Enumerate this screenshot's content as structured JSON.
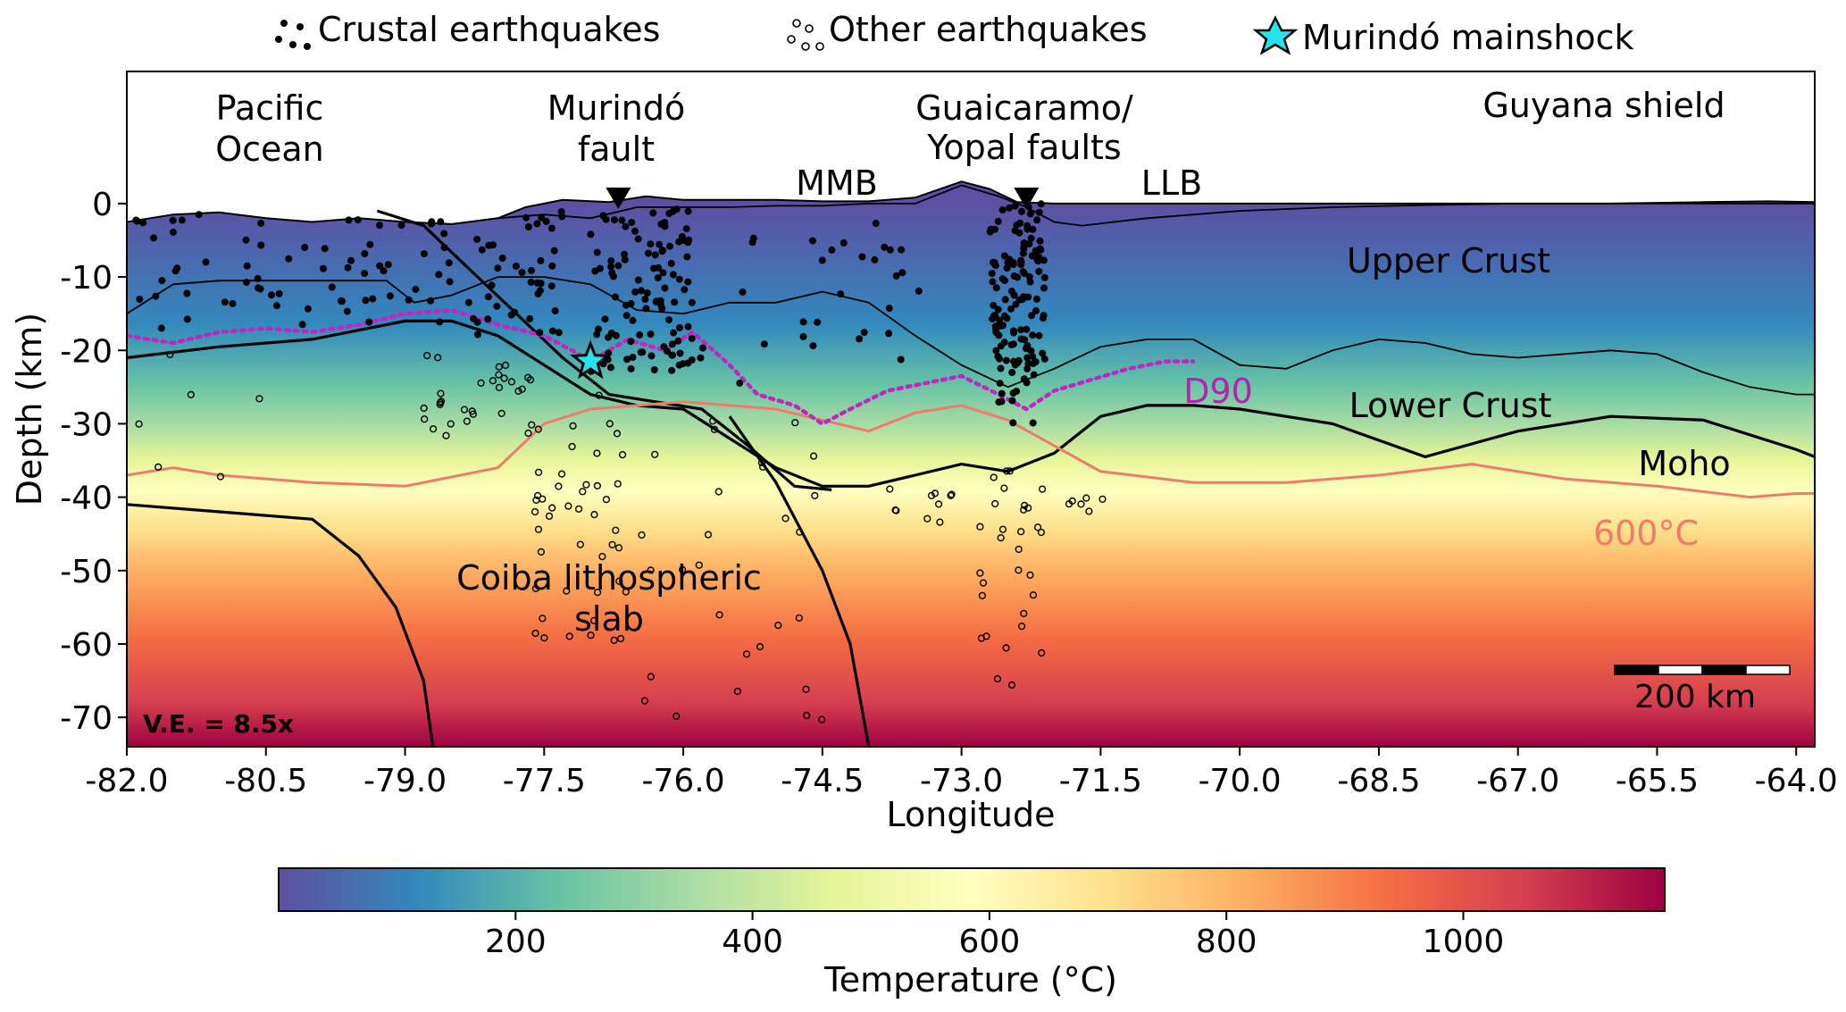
{
  "chart_data": {
    "type": "cross-section heatmap",
    "xlabel": "Longitude",
    "ylabel": "Depth (km)",
    "xlim": [
      -82.0,
      -63.8
    ],
    "ylim": [
      -74,
      18
    ],
    "x_ticks": [
      -82.0,
      -80.5,
      -79.0,
      -77.5,
      -76.0,
      -74.5,
      -73.0,
      -71.5,
      -70.0,
      -68.5,
      -67.0,
      -65.5,
      -64.0
    ],
    "x_tick_labels": [
      "-82.0",
      "-80.5",
      "-79.0",
      "-77.5",
      "-76.0",
      "-74.5",
      "-73.0",
      "-71.5",
      "-70.0",
      "-68.5",
      "-67.0",
      "-65.5",
      "-64.0"
    ],
    "y_ticks": [
      0,
      -10,
      -20,
      -30,
      -40,
      -50,
      -60,
      -70
    ],
    "y_tick_labels": [
      "0",
      "-10",
      "-20",
      "-30",
      "-40",
      "-50",
      "-60",
      "-70"
    ],
    "legend": {
      "placement": "top",
      "entries": [
        {
          "label": "Crustal earthquakes",
          "marker": "filled-dots"
        },
        {
          "label": "Other earthquakes",
          "marker": "open-circles"
        },
        {
          "label": "Murindó mainshock",
          "marker": "star"
        }
      ]
    },
    "region_labels": {
      "pacific": "Pacific\nOcean",
      "murindo_fault": "Murindó\nfault",
      "mmb": "MMB",
      "guaicaramo": "Guaicaramo/\nYopal faults",
      "llb": "LLB",
      "guyana": "Guyana shield",
      "upper_crust": "Upper Crust",
      "lower_crust": "Lower Crust",
      "moho": "Moho",
      "isotherm": "600°C",
      "d90": "D90",
      "slab": "Coiba lithospheric\nslab",
      "ve": "V.E. = 8.5x",
      "scale": "200 km"
    },
    "fault_markers_lon": [
      -76.7,
      -72.3
    ],
    "mainshock": {
      "lon": -77.0,
      "depth": -21.5
    },
    "colorbar": {
      "label": "Temperature (°C)",
      "range": [
        0,
        1170
      ],
      "ticks": [
        200,
        400,
        600,
        800,
        1000
      ],
      "tick_labels": [
        "200",
        "400",
        "600",
        "800",
        "1000"
      ],
      "colormap": [
        "#5e4fa2",
        "#3288bd",
        "#66c2a5",
        "#abdda4",
        "#e6f598",
        "#ffffbf",
        "#fee08b",
        "#fdae61",
        "#f46d43",
        "#d53e4f",
        "#9e0142"
      ]
    },
    "lines": {
      "topography": [
        [
          -82.0,
          -2.5
        ],
        [
          -81.5,
          -1.5
        ],
        [
          -81.0,
          -1.2
        ],
        [
          -80.5,
          -2.0
        ],
        [
          -80.0,
          -2.5
        ],
        [
          -79.5,
          -2.0
        ],
        [
          -79.0,
          -2.5
        ],
        [
          -78.5,
          -2.8
        ],
        [
          -78.0,
          -2.0
        ],
        [
          -77.7,
          -0.5
        ],
        [
          -77.3,
          0.5
        ],
        [
          -76.8,
          0.2
        ],
        [
          -76.4,
          1.0
        ],
        [
          -76.0,
          0.5
        ],
        [
          -75.5,
          0.5
        ],
        [
          -75.0,
          0.5
        ],
        [
          -74.5,
          0.3
        ],
        [
          -74.0,
          0.3
        ],
        [
          -73.5,
          0.8
        ],
        [
          -73.0,
          3.0
        ],
        [
          -72.7,
          2.0
        ],
        [
          -72.4,
          0.2
        ],
        [
          -72.0,
          0.0
        ],
        [
          -71.0,
          0.0
        ],
        [
          -70.0,
          0.0
        ],
        [
          -69.0,
          0.0
        ],
        [
          -68.0,
          0.0
        ],
        [
          -67.0,
          0.0
        ],
        [
          -66.0,
          0.0
        ],
        [
          -65.0,
          0.2
        ],
        [
          -64.3,
          0.3
        ],
        [
          -63.8,
          0.2
        ]
      ],
      "sediment_base": [
        [
          -78.0,
          -2.0
        ],
        [
          -77.5,
          -1.5
        ],
        [
          -77.0,
          -2.0
        ],
        [
          -76.5,
          -0.5
        ],
        [
          -76.0,
          -0.5
        ],
        [
          -75.5,
          -0.5
        ],
        [
          -75.0,
          -0.3
        ],
        [
          -74.5,
          -0.3
        ],
        [
          -74.0,
          0.0
        ],
        [
          -73.5,
          0.0
        ],
        [
          -73.0,
          2.5
        ],
        [
          -72.6,
          1.0
        ],
        [
          -72.3,
          -0.5
        ],
        [
          -72.0,
          -2.5
        ],
        [
          -71.7,
          -3.0
        ],
        [
          -71.0,
          -2.0
        ],
        [
          -70.0,
          -1.0
        ],
        [
          -69.0,
          -0.5
        ],
        [
          -68.0,
          -0.2
        ],
        [
          -67.0,
          0.0
        ],
        [
          -66.0,
          0.0
        ],
        [
          -65.0,
          0.0
        ],
        [
          -63.8,
          0.0
        ]
      ],
      "conrad": [
        [
          -82.0,
          -15.0
        ],
        [
          -81.5,
          -11.0
        ],
        [
          -81.0,
          -10.5
        ],
        [
          -80.0,
          -10.5
        ],
        [
          -79.2,
          -10.5
        ],
        [
          -78.9,
          -13.5
        ],
        [
          -78.5,
          -12.5
        ],
        [
          -78.0,
          -10.0
        ],
        [
          -77.5,
          -10.0
        ],
        [
          -77.0,
          -11.0
        ],
        [
          -76.5,
          -14.5
        ],
        [
          -76.0,
          -15.0
        ],
        [
          -75.5,
          -13.5
        ],
        [
          -75.0,
          -13.5
        ],
        [
          -74.5,
          -12.0
        ],
        [
          -74.0,
          -13.5
        ],
        [
          -73.5,
          -18.0
        ],
        [
          -73.0,
          -22.0
        ],
        [
          -72.5,
          -25.0
        ],
        [
          -72.0,
          -22.5
        ],
        [
          -71.5,
          -19.5
        ],
        [
          -71.0,
          -18.5
        ],
        [
          -70.5,
          -18.5
        ],
        [
          -70.0,
          -22.0
        ],
        [
          -69.5,
          -22.5
        ],
        [
          -69.0,
          -20.0
        ],
        [
          -68.5,
          -18.5
        ],
        [
          -68.0,
          -19.0
        ],
        [
          -67.5,
          -20.5
        ],
        [
          -67.0,
          -21.0
        ],
        [
          -66.5,
          -20.5
        ],
        [
          -66.0,
          -20.0
        ],
        [
          -65.5,
          -20.5
        ],
        [
          -65.0,
          -23.0
        ],
        [
          -64.5,
          -25.0
        ],
        [
          -64.0,
          -26.0
        ],
        [
          -63.8,
          -26.0
        ]
      ],
      "moho": [
        [
          -82.0,
          -21.0
        ],
        [
          -81.0,
          -19.5
        ],
        [
          -80.0,
          -18.5
        ],
        [
          -79.0,
          -16.0
        ],
        [
          -78.5,
          -16.0
        ],
        [
          -78.0,
          -18.0
        ],
        [
          -77.5,
          -22.0
        ],
        [
          -77.0,
          -26.0
        ],
        [
          -76.5,
          -27.5
        ],
        [
          -76.0,
          -28.0
        ],
        [
          -75.5,
          -32.0
        ],
        [
          -75.0,
          -36.0
        ],
        [
          -74.5,
          -38.5
        ],
        [
          -74.0,
          -38.5
        ],
        [
          -73.5,
          -37.0
        ],
        [
          -73.0,
          -35.5
        ],
        [
          -72.5,
          -36.5
        ],
        [
          -72.0,
          -34.0
        ],
        [
          -71.5,
          -29.0
        ],
        [
          -71.0,
          -27.5
        ],
        [
          -70.5,
          -27.5
        ],
        [
          -70.0,
          -28.0
        ],
        [
          -69.0,
          -30.0
        ],
        [
          -68.0,
          -34.5
        ],
        [
          -67.0,
          -31.0
        ],
        [
          -66.0,
          -29.0
        ],
        [
          -65.0,
          -29.5
        ],
        [
          -64.0,
          -33.5
        ],
        [
          -63.8,
          -34.5
        ]
      ],
      "slab_top": [
        [
          -79.3,
          -1.0
        ],
        [
          -78.8,
          -3.0
        ],
        [
          -78.3,
          -9.0
        ],
        [
          -77.8,
          -15.0
        ],
        [
          -77.3,
          -21.0
        ],
        [
          -76.8,
          -26.0
        ],
        [
          -76.3,
          -27.0
        ],
        [
          -75.8,
          -28.0
        ],
        [
          -75.3,
          -33.0
        ],
        [
          -74.8,
          -38.5
        ],
        [
          -74.4,
          -39.0
        ]
      ],
      "slab_base": [
        [
          -82.0,
          -41.0
        ],
        [
          -81.0,
          -42.0
        ],
        [
          -80.0,
          -43.0
        ],
        [
          -79.5,
          -48.0
        ],
        [
          -79.1,
          -55.0
        ],
        [
          -78.8,
          -65.0
        ],
        [
          -78.7,
          -74.0
        ]
      ],
      "slab_lower": [
        [
          -75.5,
          -29.0
        ],
        [
          -75.0,
          -38.0
        ],
        [
          -74.5,
          -50.0
        ],
        [
          -74.2,
          -60.0
        ],
        [
          -74.0,
          -74.0
        ]
      ],
      "isotherm_600": [
        [
          -82.0,
          -37.0
        ],
        [
          -81.5,
          -36.0
        ],
        [
          -81.0,
          -37.0
        ],
        [
          -80.0,
          -38.0
        ],
        [
          -79.0,
          -38.5
        ],
        [
          -78.0,
          -36.0
        ],
        [
          -77.5,
          -30.0
        ],
        [
          -77.0,
          -28.0
        ],
        [
          -76.0,
          -27.0
        ],
        [
          -75.0,
          -28.0
        ],
        [
          -74.0,
          -31.0
        ],
        [
          -73.5,
          -28.5
        ],
        [
          -73.0,
          -27.5
        ],
        [
          -72.5,
          -29.5
        ],
        [
          -72.0,
          -33.0
        ],
        [
          -71.5,
          -36.5
        ],
        [
          -70.5,
          -38.0
        ],
        [
          -69.5,
          -38.0
        ],
        [
          -68.5,
          -37.0
        ],
        [
          -67.5,
          -35.5
        ],
        [
          -66.5,
          -37.5
        ],
        [
          -65.5,
          -38.5
        ],
        [
          -64.5,
          -40.0
        ],
        [
          -64.0,
          -39.5
        ],
        [
          -63.8,
          -39.5
        ]
      ],
      "d90": [
        [
          -82.0,
          -18.0
        ],
        [
          -81.5,
          -19.0
        ],
        [
          -81.0,
          -17.5
        ],
        [
          -80.5,
          -17.0
        ],
        [
          -80.0,
          -17.5
        ],
        [
          -79.5,
          -16.5
        ],
        [
          -79.0,
          -15.0
        ],
        [
          -78.5,
          -14.5
        ],
        [
          -78.0,
          -16.5
        ],
        [
          -77.5,
          -18.0
        ],
        [
          -77.2,
          -20.0
        ],
        [
          -77.0,
          -21.5
        ],
        [
          -76.6,
          -18.5
        ],
        [
          -76.2,
          -20.0
        ],
        [
          -75.9,
          -17.5
        ],
        [
          -75.5,
          -22.0
        ],
        [
          -75.2,
          -26.0
        ],
        [
          -74.8,
          -27.5
        ],
        [
          -74.5,
          -30.0
        ],
        [
          -74.2,
          -28.0
        ],
        [
          -73.8,
          -25.5
        ],
        [
          -73.4,
          -24.5
        ],
        [
          -73.0,
          -23.5
        ],
        [
          -72.6,
          -26.0
        ],
        [
          -72.3,
          -28.0
        ],
        [
          -72.0,
          -25.5
        ],
        [
          -71.6,
          -24.0
        ],
        [
          -71.2,
          -22.5
        ],
        [
          -70.8,
          -21.5
        ],
        [
          -70.5,
          -21.5
        ]
      ]
    }
  }
}
